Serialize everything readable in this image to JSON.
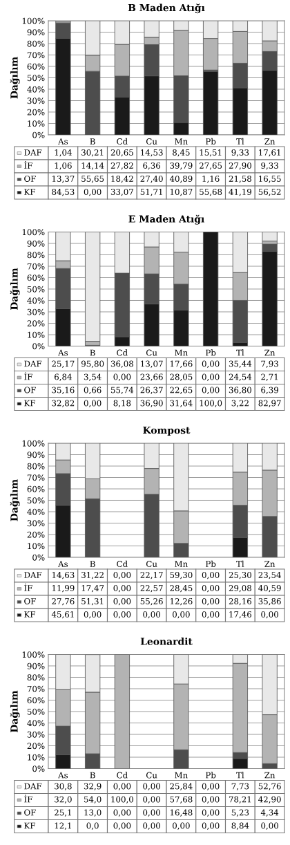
{
  "chart_data": [
    {
      "type": "bar",
      "stacked": true,
      "title": "B Maden Atığı",
      "ylabel": "Dağılım",
      "categories": [
        "As",
        "B",
        "Cd",
        "Cu",
        "Mn",
        "Pb",
        "Tl",
        "Zn"
      ],
      "ylim": [
        0,
        100
      ],
      "yticks": [
        {
          "value": 0,
          "label": "0%"
        },
        {
          "value": 10,
          "label": "10%"
        },
        {
          "value": 20,
          "label": "20%"
        },
        {
          "value": 30,
          "label": "30%"
        },
        {
          "value": 40,
          "label": "40%"
        },
        {
          "value": 50,
          "label": "50%"
        },
        {
          "value": 60,
          "label": "60%"
        },
        {
          "value": 70,
          "label": "70%"
        },
        {
          "value": 80,
          "label": "80%"
        },
        {
          "value": 90,
          "label": "90%"
        },
        {
          "value": 100,
          "label": "100%"
        }
      ],
      "grid": "y",
      "legend": "bottom",
      "series": [
        {
          "name": "KF",
          "color": "#1a1a1a",
          "values": [
            84.53,
            0.0,
            33.07,
            51.71,
            10.87,
            55.68,
            41.19,
            56.52
          ],
          "value_labels": [
            "84,53",
            "0,00",
            "33,07",
            "51,71",
            "10,87",
            "55,68",
            "41,19",
            "56,52"
          ]
        },
        {
          "name": "OF",
          "color": "#4d4d4d",
          "values": [
            13.37,
            55.65,
            18.42,
            27.4,
            40.89,
            1.16,
            21.58,
            16.55
          ],
          "value_labels": [
            "13,37",
            "55,65",
            "18,42",
            "27,40",
            "40,89",
            "1,16",
            "21,58",
            "16,55"
          ]
        },
        {
          "name": "İF",
          "color": "#b3b3b3",
          "values": [
            1.06,
            14.14,
            27.82,
            6.36,
            39.79,
            27.65,
            27.9,
            9.33
          ],
          "value_labels": [
            "1,06",
            "14,14",
            "27,82",
            "6,36",
            "39,79",
            "27,65",
            "27,90",
            "9,33"
          ]
        },
        {
          "name": "DAF",
          "color": "#e8e8e8",
          "values": [
            1.04,
            30.21,
            20.65,
            14.53,
            8.45,
            15.51,
            9.33,
            17.61
          ],
          "value_labels": [
            "1,04",
            "30,21",
            "20,65",
            "14,53",
            "8,45",
            "15,51",
            "9,33",
            "17,61"
          ]
        }
      ]
    },
    {
      "type": "bar",
      "stacked": true,
      "title": "E Maden Atığı",
      "ylabel": "Dağılım",
      "categories": [
        "As",
        "B",
        "Cd",
        "Cu",
        "Mn",
        "Pb",
        "Tl",
        "Zn"
      ],
      "ylim": [
        0,
        100
      ],
      "yticks": [
        {
          "value": 0,
          "label": "0%"
        },
        {
          "value": 10,
          "label": "10%"
        },
        {
          "value": 20,
          "label": "20%"
        },
        {
          "value": 30,
          "label": "30%"
        },
        {
          "value": 40,
          "label": "40%"
        },
        {
          "value": 50,
          "label": "50%"
        },
        {
          "value": 60,
          "label": "60%"
        },
        {
          "value": 70,
          "label": "70%"
        },
        {
          "value": 80,
          "label": "80%"
        },
        {
          "value": 90,
          "label": "90%"
        },
        {
          "value": 100,
          "label": "100%"
        }
      ],
      "grid": "y",
      "legend": "bottom",
      "series": [
        {
          "name": "KF",
          "color": "#1a1a1a",
          "values": [
            32.82,
            0.0,
            8.18,
            36.9,
            31.64,
            100.0,
            3.22,
            82.97
          ],
          "value_labels": [
            "32,82",
            "0,00",
            "8,18",
            "36,90",
            "31,64",
            "100,0",
            "3,22",
            "82,97"
          ]
        },
        {
          "name": "OF",
          "color": "#4d4d4d",
          "values": [
            35.16,
            0.66,
            55.74,
            26.37,
            22.65,
            0.0,
            36.8,
            6.39
          ],
          "value_labels": [
            "35,16",
            "0,66",
            "55,74",
            "26,37",
            "22,65",
            "0,00",
            "36,80",
            "6,39"
          ]
        },
        {
          "name": "İF",
          "color": "#b3b3b3",
          "values": [
            6.84,
            3.54,
            0.0,
            23.66,
            28.05,
            0.0,
            24.54,
            2.71
          ],
          "value_labels": [
            "6,84",
            "3,54",
            "0,00",
            "23,66",
            "28,05",
            "0,00",
            "24,54",
            "2,71"
          ]
        },
        {
          "name": "DAF",
          "color": "#e8e8e8",
          "values": [
            25.17,
            95.8,
            36.08,
            13.07,
            17.66,
            0.0,
            35.44,
            7.93
          ],
          "value_labels": [
            "25,17",
            "95,80",
            "36,08",
            "13,07",
            "17,66",
            "0,00",
            "35,44",
            "7,93"
          ]
        }
      ]
    },
    {
      "type": "bar",
      "stacked": true,
      "title": "Kompost",
      "ylabel": "Dağılım",
      "categories": [
        "As",
        "B",
        "Cd",
        "Cu",
        "Mn",
        "Pb",
        "Tl",
        "Zn"
      ],
      "ylim": [
        0,
        100
      ],
      "yticks": [
        {
          "value": 0,
          "label": "0%"
        },
        {
          "value": 10,
          "label": "10%"
        },
        {
          "value": 20,
          "label": "20%"
        },
        {
          "value": 30,
          "label": "30%"
        },
        {
          "value": 40,
          "label": "40%"
        },
        {
          "value": 50,
          "label": "50%"
        },
        {
          "value": 60,
          "label": "60%"
        },
        {
          "value": 70,
          "label": "70%"
        },
        {
          "value": 80,
          "label": "80%"
        },
        {
          "value": 90,
          "label": "90%"
        },
        {
          "value": 100,
          "label": "100%"
        }
      ],
      "grid": "y",
      "legend": "bottom",
      "series": [
        {
          "name": "KF",
          "color": "#1a1a1a",
          "values": [
            45.61,
            0.0,
            0.0,
            0.0,
            0.0,
            0.0,
            17.46,
            0.0
          ],
          "value_labels": [
            "45,61",
            "0,00",
            "0,00",
            "0,00",
            "0,00",
            "0,00",
            "17,46",
            "0,00"
          ]
        },
        {
          "name": "OF",
          "color": "#4d4d4d",
          "values": [
            27.76,
            51.31,
            0.0,
            55.26,
            12.26,
            0.0,
            28.16,
            35.86
          ],
          "value_labels": [
            "27,76",
            "51,31",
            "0,00",
            "55,26",
            "12,26",
            "0,00",
            "28,16",
            "35,86"
          ]
        },
        {
          "name": "İF",
          "color": "#b3b3b3",
          "values": [
            11.99,
            17.47,
            0.0,
            22.57,
            28.45,
            0.0,
            29.08,
            40.59
          ],
          "value_labels": [
            "11,99",
            "17,47",
            "0,00",
            "22,57",
            "28,45",
            "0,00",
            "29,08",
            "40,59"
          ]
        },
        {
          "name": "DAF",
          "color": "#e8e8e8",
          "values": [
            14.63,
            31.22,
            0.0,
            22.17,
            59.3,
            0.0,
            25.3,
            23.54
          ],
          "value_labels": [
            "14,63",
            "31,22",
            "0,00",
            "22,17",
            "59,30",
            "0,00",
            "25,30",
            "23,54"
          ]
        }
      ]
    },
    {
      "type": "bar",
      "stacked": true,
      "title": "Leonardit",
      "ylabel": "Dağılım",
      "categories": [
        "As",
        "B",
        "Cd",
        "Cu",
        "Mn",
        "Pb",
        "Tl",
        "Zn"
      ],
      "ylim": [
        0,
        100
      ],
      "yticks": [
        {
          "value": 0,
          "label": "0%"
        },
        {
          "value": 10,
          "label": "10%"
        },
        {
          "value": 20,
          "label": "20%"
        },
        {
          "value": 30,
          "label": "30%"
        },
        {
          "value": 40,
          "label": "40%"
        },
        {
          "value": 50,
          "label": "50%"
        },
        {
          "value": 60,
          "label": "60%"
        },
        {
          "value": 70,
          "label": "70%"
        },
        {
          "value": 80,
          "label": "80%"
        },
        {
          "value": 90,
          "label": "90%"
        },
        {
          "value": 100,
          "label": "100%"
        }
      ],
      "grid": "y",
      "legend": "bottom",
      "series": [
        {
          "name": "KF",
          "color": "#1a1a1a",
          "values": [
            12.1,
            0.0,
            0.0,
            0.0,
            0.0,
            0.0,
            8.84,
            0.0
          ],
          "value_labels": [
            "12,1",
            "0,0",
            "0,00",
            "0,00",
            "0,00",
            "0,00",
            "8,84",
            "0,00"
          ]
        },
        {
          "name": "OF",
          "color": "#4d4d4d",
          "values": [
            25.1,
            13.0,
            0.0,
            0.0,
            16.48,
            0.0,
            5.23,
            4.34
          ],
          "value_labels": [
            "25,1",
            "13,0",
            "0,00",
            "0,00",
            "16,48",
            "0,00",
            "5,23",
            "4,34"
          ]
        },
        {
          "name": "İF",
          "color": "#b3b3b3",
          "values": [
            32.0,
            54.0,
            100.0,
            0.0,
            57.68,
            0.0,
            78.21,
            42.9
          ],
          "value_labels": [
            "32,0",
            "54,0",
            "100,0",
            "0,00",
            "57,68",
            "0,00",
            "78,21",
            "42,90"
          ]
        },
        {
          "name": "DAF",
          "color": "#e8e8e8",
          "values": [
            30.8,
            32.9,
            0.0,
            0.0,
            25.84,
            0.0,
            7.73,
            52.76
          ],
          "value_labels": [
            "30,8",
            "32,9",
            "0,00",
            "0,00",
            "25,84",
            "0,00",
            "7,73",
            "52,76"
          ]
        }
      ]
    }
  ]
}
